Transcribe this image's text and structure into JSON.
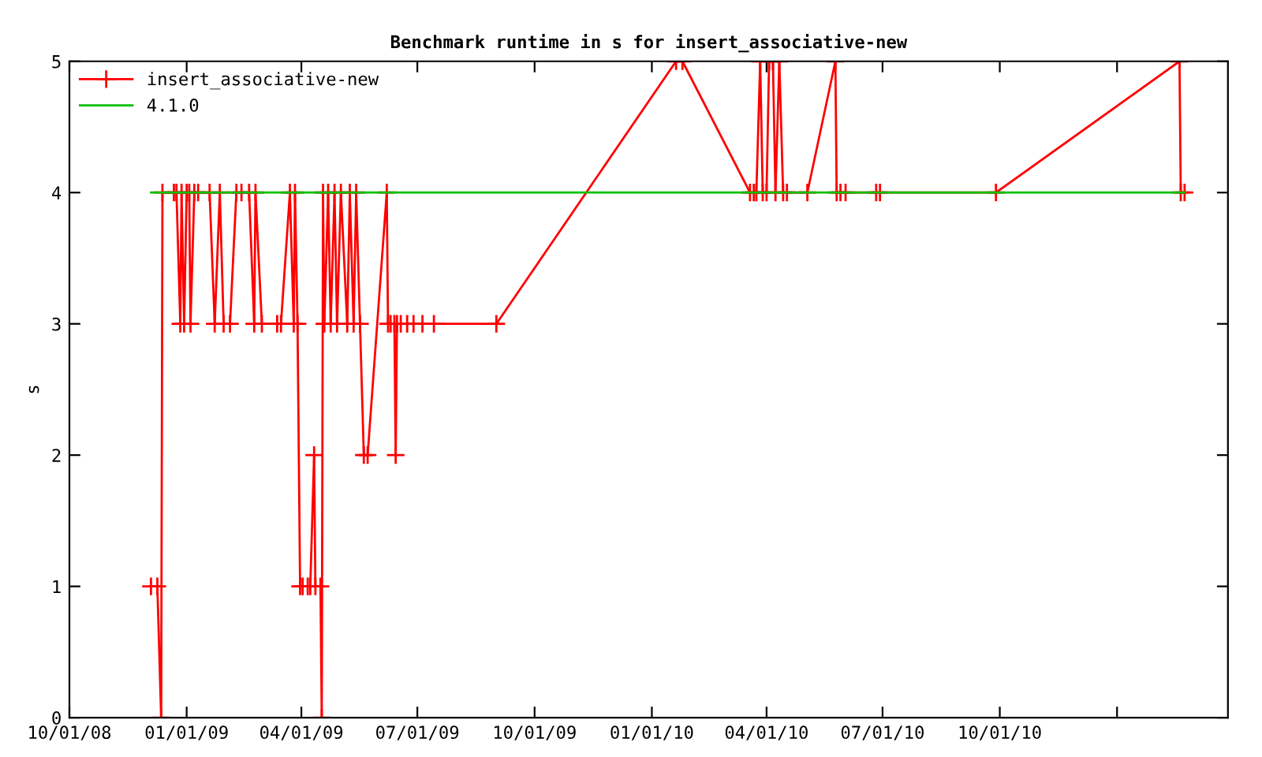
{
  "chart_data": {
    "type": "line",
    "title": "Benchmark runtime in s for insert_associative-new",
    "ylabel": "s",
    "xlim": [
      "2008-10-01",
      "2011-03-29"
    ],
    "ylim": [
      0,
      5
    ],
    "yticks": [
      0,
      1,
      2,
      3,
      4,
      5
    ],
    "xticks": [
      {
        "value": "2008-10-01",
        "label": "10/01/08"
      },
      {
        "value": "2009-01-01",
        "label": "01/01/09"
      },
      {
        "value": "2009-04-01",
        "label": "04/01/09"
      },
      {
        "value": "2009-07-01",
        "label": "07/01/09"
      },
      {
        "value": "2009-10-01",
        "label": "10/01/09"
      },
      {
        "value": "2010-01-01",
        "label": "01/01/10"
      },
      {
        "value": "2010-04-01",
        "label": "04/01/10"
      },
      {
        "value": "2010-07-01",
        "label": "07/01/10"
      },
      {
        "value": "2010-10-01",
        "label": "10/01/10"
      },
      {
        "value": "2011-01-01",
        "label": null
      }
    ],
    "grid": false,
    "legend": "top left",
    "series": [
      {
        "name": "insert_associative-new",
        "color": "#ff0000",
        "marker": "cross",
        "x": [
          "2008-12-04",
          "2008-12-09",
          "2008-12-12",
          "2008-12-13",
          "2008-12-22",
          "2008-12-24",
          "2008-12-27",
          "2008-12-28",
          "2008-12-30",
          "2009-01-01",
          "2009-01-03",
          "2009-01-04",
          "2009-01-07",
          "2009-01-10",
          "2009-01-19",
          "2009-01-23",
          "2009-01-27",
          "2009-01-30",
          "2009-02-04",
          "2009-02-09",
          "2009-02-13",
          "2009-02-19",
          "2009-02-23",
          "2009-02-24",
          "2009-03-01",
          "2009-03-13",
          "2009-03-16",
          "2009-03-23",
          "2009-03-26",
          "2009-03-27",
          "2009-03-29",
          "2009-03-31",
          "2009-04-02",
          "2009-04-06",
          "2009-04-08",
          "2009-04-11",
          "2009-04-12",
          "2009-04-16",
          "2009-04-17",
          "2009-04-18",
          "2009-04-19",
          "2009-04-22",
          "2009-04-24",
          "2009-04-27",
          "2009-04-29",
          "2009-05-02",
          "2009-05-07",
          "2009-05-09",
          "2009-05-12",
          "2009-05-14",
          "2009-05-17",
          "2009-05-20",
          "2009-05-23",
          "2009-06-07",
          "2009-06-08",
          "2009-06-10",
          "2009-06-13",
          "2009-06-14",
          "2009-06-15",
          "2009-06-18",
          "2009-06-23",
          "2009-06-28",
          "2009-07-05",
          "2009-07-14",
          "2009-09-01",
          "2010-01-20",
          "2010-01-25",
          "2010-03-19",
          "2010-03-22",
          "2010-03-24",
          "2010-03-27",
          "2010-03-29",
          "2010-04-01",
          "2010-04-03",
          "2010-04-06",
          "2010-04-08",
          "2010-04-11",
          "2010-04-14",
          "2010-04-17",
          "2010-05-03",
          "2010-05-25",
          "2010-05-26",
          "2010-05-29",
          "2010-06-02",
          "2010-06-26",
          "2010-06-29",
          "2010-09-28",
          "2011-02-19",
          "2011-02-20",
          "2011-02-23"
        ],
        "values": [
          1,
          1,
          0,
          4,
          4,
          4,
          3,
          4,
          3,
          4,
          4,
          3,
          4,
          4,
          4,
          3,
          4,
          3,
          3,
          4,
          4,
          4,
          3,
          4,
          3,
          3,
          3,
          4,
          3,
          4,
          3,
          1,
          1,
          1,
          1,
          2,
          1,
          1,
          0,
          4,
          3,
          4,
          3,
          4,
          3,
          4,
          3,
          4,
          3,
          4,
          3,
          2,
          2,
          4,
          3,
          3,
          3,
          2,
          3,
          3,
          3,
          3,
          3,
          3,
          3,
          5,
          5,
          4,
          4,
          4,
          5,
          4,
          4,
          5,
          5,
          4,
          5,
          4,
          4,
          4,
          5,
          4,
          4,
          4,
          4,
          4,
          4,
          5,
          4,
          4
        ]
      },
      {
        "name": "4.1.0",
        "color": "#00c000",
        "marker": "none",
        "x": [
          "2008-12-04",
          "2011-02-23"
        ],
        "values": [
          4,
          4
        ]
      }
    ]
  }
}
